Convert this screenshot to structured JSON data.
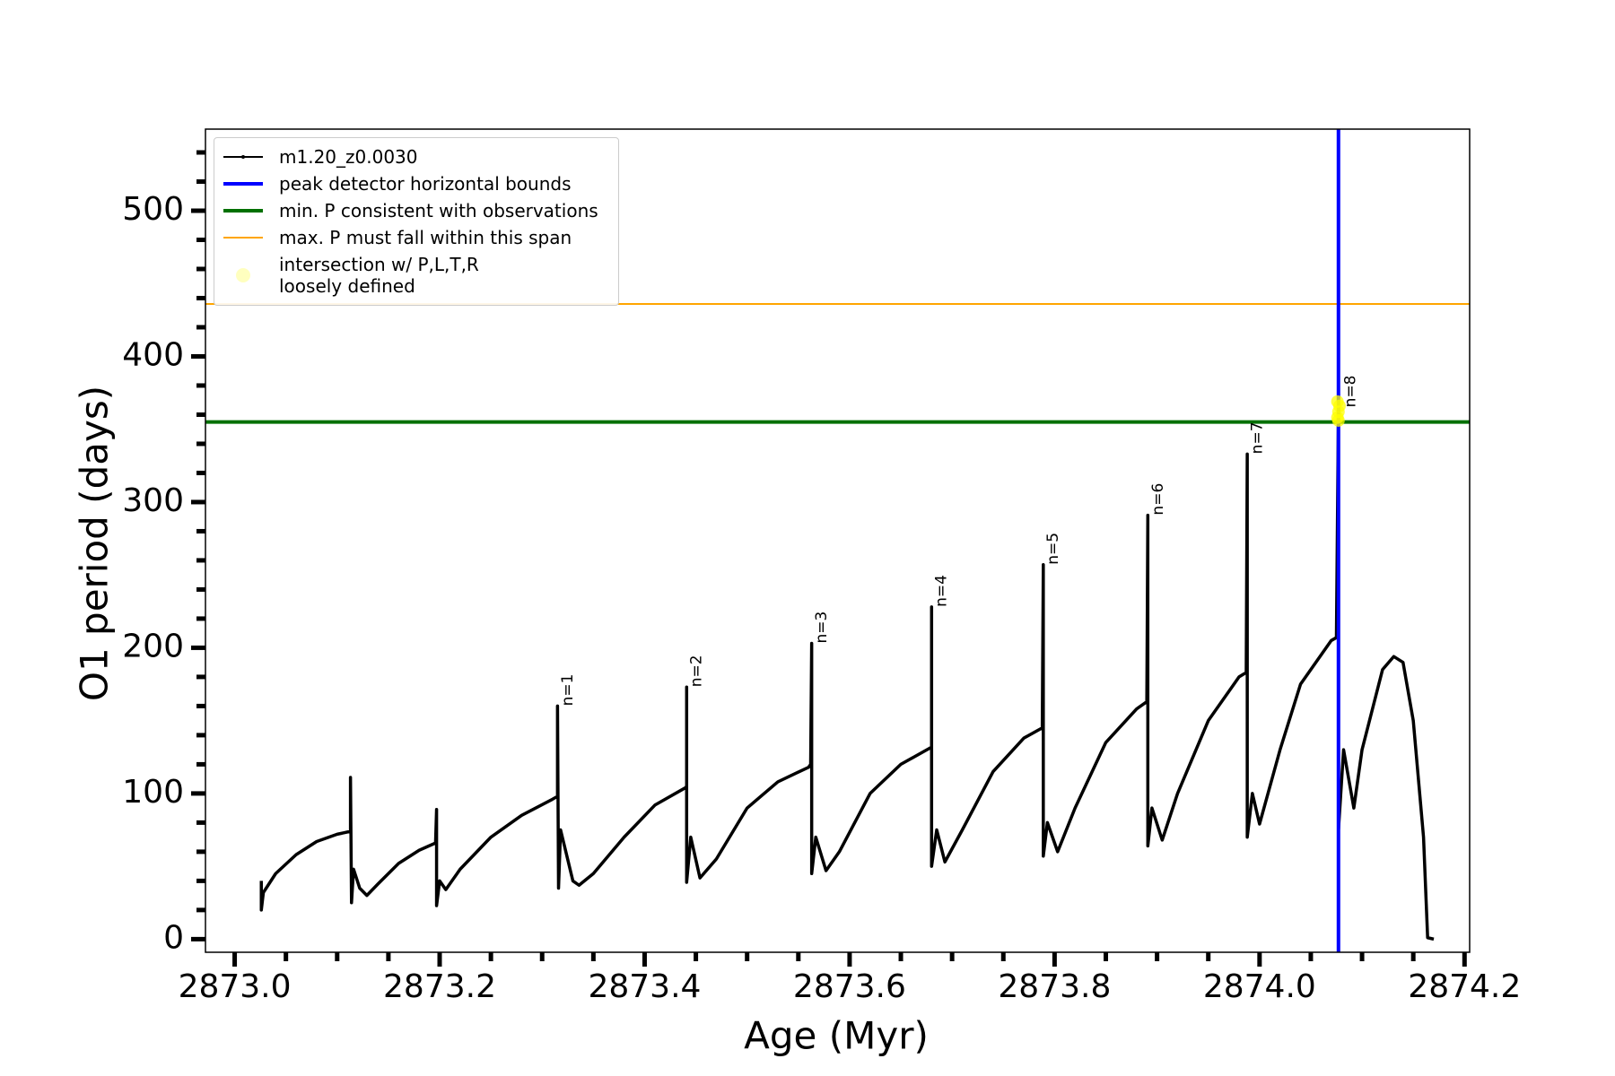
{
  "chart_data": {
    "type": "line",
    "xlabel": "Age (Myr)",
    "ylabel": "O1 period (days)",
    "xlim": [
      2872.9715,
      2874.205
    ],
    "ylim": [
      -9,
      556
    ],
    "xticks": [
      {
        "value": 2873.0,
        "label": "2873.0"
      },
      {
        "value": 2873.2,
        "label": "2873.2"
      },
      {
        "value": 2873.4,
        "label": "2873.4"
      },
      {
        "value": 2873.6,
        "label": "2873.6"
      },
      {
        "value": 2873.8,
        "label": "2873.8"
      },
      {
        "value": 2874.0,
        "label": "2874.0"
      },
      {
        "value": 2874.2,
        "label": "2874.2"
      }
    ],
    "xminorticks": [
      2873.05,
      2873.1,
      2873.15,
      2873.25,
      2873.3,
      2873.35,
      2873.45,
      2873.5,
      2873.55,
      2873.65,
      2873.7,
      2873.75,
      2873.85,
      2873.9,
      2873.95,
      2874.05,
      2874.1,
      2874.15
    ],
    "yticks": [
      0,
      100,
      200,
      300,
      400,
      500
    ],
    "yminorticks": [
      20,
      40,
      60,
      80,
      120,
      140,
      160,
      180,
      220,
      240,
      260,
      280,
      320,
      340,
      360,
      380,
      420,
      440,
      460,
      480,
      520,
      540
    ],
    "x": [
      2873.026,
      2873.026,
      2873.028,
      2873.04,
      2873.06,
      2873.08,
      2873.1,
      2873.113,
      2873.113,
      2873.114,
      2873.116,
      2873.122,
      2873.129,
      2873.14,
      2873.16,
      2873.18,
      2873.196,
      2873.197,
      2873.197,
      2873.2,
      2873.206,
      2873.22,
      2873.25,
      2873.28,
      2873.31,
      2873.315,
      2873.315,
      2873.316,
      2873.318,
      2873.33,
      2873.336,
      2873.35,
      2873.38,
      2873.41,
      2873.44,
      2873.441,
      2873.441,
      2873.441,
      2873.445,
      2873.454,
      2873.47,
      2873.5,
      2873.53,
      2873.56,
      2873.562,
      2873.563,
      2873.563,
      2873.567,
      2873.577,
      2873.59,
      2873.62,
      2873.65,
      2873.678,
      2873.68,
      2873.68,
      2873.68,
      2873.685,
      2873.693,
      2873.71,
      2873.74,
      2873.77,
      2873.788,
      2873.789,
      2873.789,
      2873.793,
      2873.803,
      2873.82,
      2873.85,
      2873.88,
      2873.89,
      2873.891,
      2873.891,
      2873.895,
      2873.905,
      2873.92,
      2873.95,
      2873.98,
      2873.987,
      2873.988,
      2873.988,
      2873.993,
      2874.0,
      2874.02,
      2874.04,
      2874.07,
      2874.075,
      2874.077,
      2874.077,
      2874.082,
      2874.092,
      2874.1,
      2874.12,
      2874.131,
      2874.14,
      2874.15,
      2874.16,
      2874.164,
      2874.17
    ],
    "series": [
      {
        "name": "m1.20_z0.0030",
        "color": "#000000",
        "values": [
          40,
          20,
          32,
          45,
          58,
          67,
          72,
          74,
          111,
          25,
          48,
          35,
          30,
          38,
          52,
          61,
          66,
          89,
          23,
          40,
          34,
          48,
          70,
          85,
          96,
          98,
          160,
          35,
          75,
          40,
          37,
          45,
          70,
          92,
          104,
          105,
          173,
          39,
          70,
          42,
          55,
          90,
          108,
          118,
          120,
          203,
          45,
          70,
          47,
          60,
          100,
          120,
          131,
          132,
          228,
          50,
          75,
          53,
          75,
          115,
          138,
          145,
          257,
          57,
          80,
          60,
          90,
          135,
          158,
          163,
          291,
          64,
          90,
          68,
          100,
          150,
          180,
          183,
          333,
          70,
          100,
          79,
          130,
          175,
          205,
          207,
          365,
          75,
          130,
          90,
          130,
          185,
          194,
          190,
          150,
          70,
          1,
          0
        ]
      }
    ],
    "vlines": [
      {
        "name": "peak detector horizontal bounds",
        "color": "#0000ff",
        "value": 2874.077
      }
    ],
    "hlines": [
      {
        "name": "min. P consistent with observations",
        "color": "#007000",
        "value": 355
      },
      {
        "name": "max. P must fall within this span",
        "color": "#ffa500",
        "value": 436
      }
    ],
    "highlight": {
      "name": "intersection w/ P,L,T,R\nloosely defined",
      "color": "#ffff00",
      "x": [
        2874.076,
        2874.077,
        2874.078,
        2874.076,
        2874.077
      ],
      "y": [
        358,
        362,
        366,
        369,
        356
      ]
    },
    "annotations": [
      {
        "text": "n=1",
        "x": 2873.318,
        "y": 160
      },
      {
        "text": "n=2",
        "x": 2873.444,
        "y": 173
      },
      {
        "text": "n=3",
        "x": 2873.566,
        "y": 203
      },
      {
        "text": "n=4",
        "x": 2873.683,
        "y": 228
      },
      {
        "text": "n=5",
        "x": 2873.792,
        "y": 257
      },
      {
        "text": "n=6",
        "x": 2873.894,
        "y": 291
      },
      {
        "text": "n=7",
        "x": 2873.991,
        "y": 333
      },
      {
        "text": "n=8",
        "x": 2874.082,
        "y": 365
      }
    ]
  }
}
